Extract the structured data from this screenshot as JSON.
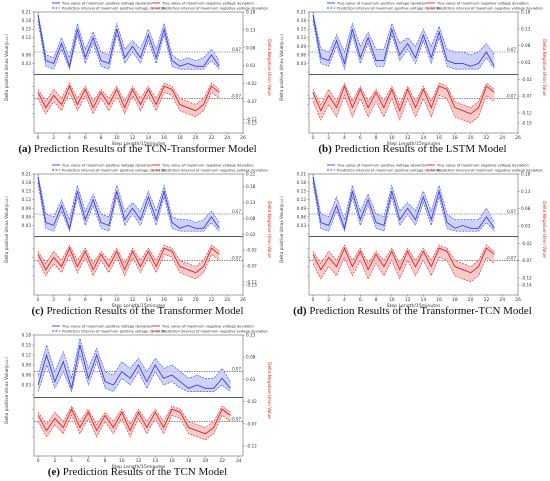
{
  "legend": {
    "pos_true": "True value of maximum positive voltage deviation",
    "neg_true": "True value of maximum negative voltage deviation",
    "pos_pi": "Prediction interval of maximum positive voltage deviation",
    "neg_pi": "Prediction interval of maximum negative voltage deviation"
  },
  "colors": {
    "positive": "#3a3ee0",
    "positive_fill": "#c8c9f5",
    "negative": "#e22020",
    "negative_fill": "#f5c2c2",
    "threshold": "#444444"
  },
  "chart_data": [
    {
      "id": "a",
      "type": "line",
      "caption_label": "(a)",
      "caption_text": "Prediction Results of the TCN-Transformer Model",
      "xlabel": "Step Length/15minutes",
      "ylabel_left": "Delta positive Umax Value(p.u.)",
      "ylabel_right": "Delta Negative Umin Value",
      "x_ticks": [
        0,
        2,
        4,
        6,
        8,
        10,
        12,
        14,
        16,
        18,
        20,
        22,
        24,
        26
      ],
      "xlim": [
        -0.5,
        26
      ],
      "y_left_ticks": [
        0.0,
        0.03,
        0.06,
        0.09,
        0.12,
        0.15,
        0.18,
        0.21
      ],
      "y_left_tick_labels": [
        "",
        "0.03",
        "0.06",
        "",
        "0.12",
        "0.15",
        "0.18",
        "0.21"
      ],
      "y_right_ticks": [
        -0.13,
        -0.12,
        -0.07,
        -0.02,
        0.03,
        0.08,
        0.13,
        0.18
      ],
      "y_right_tick_labels": [
        "-0.13",
        "-0.12",
        "-0.07",
        "-0.02",
        "0.03",
        "0.08",
        "0.13",
        "0.18"
      ],
      "pos_threshold": 0.07,
      "neg_threshold": -0.07,
      "pos_threshold_label": "0.07",
      "neg_threshold_label": "-0.07",
      "x": [
        0,
        1,
        2,
        3,
        4,
        5,
        6,
        7,
        8,
        9,
        10,
        11,
        12,
        13,
        14,
        15,
        16,
        17,
        18,
        19,
        20,
        21,
        22,
        23
      ],
      "pos_true": [
        0.2,
        0.04,
        0.03,
        0.1,
        0.02,
        0.15,
        0.05,
        0.12,
        0.04,
        0.03,
        0.15,
        0.05,
        0.09,
        0.05,
        0.13,
        0.05,
        0.15,
        0.04,
        0.02,
        0.03,
        0.02,
        0.02,
        0.06,
        0.02
      ],
      "pos_upper": [
        0.21,
        0.06,
        0.05,
        0.12,
        0.05,
        0.17,
        0.08,
        0.14,
        0.07,
        0.06,
        0.17,
        0.08,
        0.11,
        0.08,
        0.15,
        0.08,
        0.17,
        0.06,
        0.04,
        0.05,
        0.04,
        0.05,
        0.08,
        0.04
      ],
      "pos_lower": [
        0.18,
        0.02,
        0.01,
        0.08,
        0.01,
        0.13,
        0.03,
        0.1,
        0.02,
        0.01,
        0.13,
        0.03,
        0.07,
        0.03,
        0.11,
        0.03,
        0.13,
        0.02,
        0.01,
        0.01,
        0.01,
        0.01,
        0.04,
        0.01
      ],
      "neg_true": [
        -0.05,
        -0.1,
        -0.06,
        -0.09,
        -0.03,
        -0.09,
        -0.04,
        -0.1,
        -0.05,
        -0.09,
        -0.04,
        -0.1,
        -0.04,
        -0.09,
        -0.04,
        -0.09,
        -0.03,
        -0.04,
        -0.09,
        -0.1,
        -0.11,
        -0.09,
        -0.03,
        -0.05
      ],
      "neg_upper": [
        -0.04,
        -0.08,
        -0.04,
        -0.07,
        -0.02,
        -0.07,
        -0.03,
        -0.08,
        -0.04,
        -0.07,
        -0.03,
        -0.08,
        -0.03,
        -0.07,
        -0.03,
        -0.07,
        -0.02,
        -0.03,
        -0.07,
        -0.08,
        -0.09,
        -0.07,
        -0.02,
        -0.04
      ],
      "neg_lower": [
        -0.07,
        -0.12,
        -0.08,
        -0.11,
        -0.05,
        -0.11,
        -0.06,
        -0.12,
        -0.07,
        -0.11,
        -0.06,
        -0.12,
        -0.06,
        -0.11,
        -0.06,
        -0.11,
        -0.05,
        -0.06,
        -0.11,
        -0.12,
        -0.13,
        -0.11,
        -0.05,
        -0.07
      ]
    },
    {
      "id": "b",
      "type": "line",
      "caption_label": "(b)",
      "caption_text": "Prediction Results of the LSTM Model",
      "xlabel": "Step Length/15minutes",
      "ylabel_left": "Delta positive Umax Value(p.u.)",
      "ylabel_right": "Delta Negative Umin Value",
      "x_ticks": [
        0,
        2,
        4,
        6,
        8,
        10,
        12,
        14,
        16,
        18,
        20,
        22,
        24,
        26
      ],
      "xlim": [
        -0.5,
        26
      ],
      "y_left_ticks": [
        0.0,
        0.03,
        0.06,
        0.09,
        0.12,
        0.15,
        0.18,
        0.21
      ],
      "y_left_tick_labels": [
        "",
        "0.03",
        "0.06",
        "0.09",
        "0.12",
        "0.15",
        "0.18",
        "0.21"
      ],
      "y_right_ticks": [
        -0.15,
        -0.12,
        -0.07,
        -0.02,
        0.03,
        0.08,
        0.13,
        0.18
      ],
      "y_right_tick_labels": [
        "-0.15",
        "-0.12",
        "-0.07",
        "-0.02",
        "0.03",
        "0.08",
        "0.13",
        "0.18"
      ],
      "pos_threshold": 0.07,
      "neg_threshold": -0.07,
      "pos_threshold_label": "0.07",
      "neg_threshold_label": "-0.07",
      "x": [
        0,
        1,
        2,
        3,
        4,
        5,
        6,
        7,
        8,
        9,
        10,
        11,
        12,
        13,
        14,
        15,
        16,
        17,
        18,
        19,
        20,
        21,
        22,
        23
      ],
      "pos_true": [
        0.2,
        0.05,
        0.04,
        0.11,
        0.03,
        0.15,
        0.05,
        0.12,
        0.04,
        0.04,
        0.15,
        0.06,
        0.1,
        0.05,
        0.13,
        0.05,
        0.14,
        0.04,
        0.03,
        0.03,
        0.02,
        0.03,
        0.07,
        0.02
      ],
      "pos_upper": [
        0.21,
        0.08,
        0.07,
        0.13,
        0.07,
        0.17,
        0.09,
        0.14,
        0.08,
        0.08,
        0.17,
        0.1,
        0.12,
        0.09,
        0.15,
        0.09,
        0.16,
        0.08,
        0.07,
        0.07,
        0.06,
        0.07,
        0.1,
        0.06
      ],
      "pos_lower": [
        0.18,
        0.03,
        0.02,
        0.09,
        0.01,
        0.13,
        0.03,
        0.1,
        0.02,
        0.02,
        0.13,
        0.04,
        0.08,
        0.03,
        0.11,
        0.03,
        0.12,
        0.02,
        0.01,
        0.01,
        0.01,
        0.01,
        0.05,
        0.01
      ],
      "neg_true": [
        -0.05,
        -0.11,
        -0.06,
        -0.1,
        -0.03,
        -0.1,
        -0.04,
        -0.1,
        -0.05,
        -0.1,
        -0.04,
        -0.11,
        -0.04,
        -0.1,
        -0.04,
        -0.1,
        -0.03,
        -0.04,
        -0.1,
        -0.11,
        -0.12,
        -0.1,
        -0.03,
        -0.05
      ],
      "neg_upper": [
        -0.04,
        -0.09,
        -0.04,
        -0.08,
        -0.02,
        -0.08,
        -0.03,
        -0.08,
        -0.04,
        -0.08,
        -0.03,
        -0.09,
        -0.03,
        -0.08,
        -0.03,
        -0.08,
        -0.02,
        -0.03,
        -0.08,
        -0.09,
        -0.1,
        -0.08,
        -0.02,
        -0.04
      ],
      "neg_lower": [
        -0.08,
        -0.14,
        -0.09,
        -0.13,
        -0.06,
        -0.13,
        -0.07,
        -0.13,
        -0.08,
        -0.13,
        -0.07,
        -0.14,
        -0.07,
        -0.13,
        -0.07,
        -0.13,
        -0.06,
        -0.07,
        -0.13,
        -0.14,
        -0.15,
        -0.13,
        -0.06,
        -0.08
      ]
    },
    {
      "id": "c",
      "type": "line",
      "caption_label": "(c)",
      "caption_text": "Prediction Results of the Transformer Model",
      "xlabel": "Step Length/15minutes",
      "ylabel_left": "Delta positive Umax Value(p.u.)",
      "ylabel_right": "Delta Negative Umin Value",
      "x_ticks": [
        0,
        2,
        4,
        6,
        8,
        10,
        12,
        14,
        16,
        18,
        20,
        22,
        24,
        26
      ],
      "xlim": [
        -0.5,
        26
      ],
      "y_left_ticks": [
        0.0,
        0.03,
        0.06,
        0.09,
        0.12,
        0.15,
        0.18,
        0.21
      ],
      "y_left_tick_labels": [
        "",
        "0.03",
        "0.06",
        "0.09",
        "0.12",
        "0.15",
        "0.18",
        "0.21"
      ],
      "y_right_ticks": [
        -0.13,
        -0.12,
        -0.07,
        -0.02,
        0.03,
        0.08,
        0.13,
        0.18,
        0.22
      ],
      "y_right_tick_labels": [
        "-0.13",
        "-0.12",
        "-0.07",
        "-0.02",
        "0.03",
        "0.08",
        "0.13",
        "0.18",
        "0.22"
      ],
      "pos_threshold": 0.07,
      "neg_threshold": -0.07,
      "pos_threshold_label": "0.07",
      "neg_threshold_label": "-0.07",
      "x": [
        0,
        1,
        2,
        3,
        4,
        5,
        6,
        7,
        8,
        9,
        10,
        11,
        12,
        13,
        14,
        15,
        16,
        17,
        18,
        19,
        20,
        21,
        22,
        23
      ],
      "pos_true": [
        0.2,
        0.04,
        0.03,
        0.1,
        0.02,
        0.15,
        0.05,
        0.12,
        0.04,
        0.03,
        0.15,
        0.05,
        0.09,
        0.05,
        0.13,
        0.05,
        0.15,
        0.04,
        0.02,
        0.03,
        0.02,
        0.02,
        0.06,
        0.02
      ],
      "pos_upper": [
        0.21,
        0.07,
        0.06,
        0.12,
        0.05,
        0.17,
        0.08,
        0.14,
        0.07,
        0.06,
        0.17,
        0.08,
        0.11,
        0.08,
        0.15,
        0.08,
        0.17,
        0.06,
        0.05,
        0.05,
        0.04,
        0.05,
        0.08,
        0.04
      ],
      "pos_lower": [
        0.18,
        0.02,
        0.01,
        0.08,
        0.01,
        0.13,
        0.03,
        0.1,
        0.02,
        0.01,
        0.13,
        0.03,
        0.07,
        0.03,
        0.11,
        0.03,
        0.13,
        0.02,
        0.01,
        0.01,
        0.01,
        0.01,
        0.04,
        0.01
      ],
      "neg_true": [
        -0.05,
        -0.1,
        -0.06,
        -0.09,
        -0.03,
        -0.09,
        -0.04,
        -0.1,
        -0.05,
        -0.09,
        -0.04,
        -0.1,
        -0.04,
        -0.09,
        -0.04,
        -0.09,
        -0.03,
        -0.04,
        -0.09,
        -0.1,
        -0.11,
        -0.09,
        -0.03,
        -0.05
      ],
      "neg_upper": [
        -0.04,
        -0.08,
        -0.04,
        -0.07,
        -0.02,
        -0.07,
        -0.03,
        -0.08,
        -0.04,
        -0.07,
        -0.03,
        -0.08,
        -0.03,
        -0.07,
        -0.03,
        -0.07,
        -0.02,
        -0.03,
        -0.07,
        -0.08,
        -0.09,
        -0.07,
        -0.02,
        -0.04
      ],
      "neg_lower": [
        -0.07,
        -0.12,
        -0.08,
        -0.11,
        -0.05,
        -0.11,
        -0.06,
        -0.12,
        -0.07,
        -0.11,
        -0.06,
        -0.12,
        -0.06,
        -0.11,
        -0.06,
        -0.11,
        -0.05,
        -0.06,
        -0.11,
        -0.12,
        -0.13,
        -0.11,
        -0.05,
        -0.07
      ]
    },
    {
      "id": "d",
      "type": "line",
      "caption_label": "(d)",
      "caption_text": "Prediction Results of the Transformer-TCN Model",
      "xlabel": "Step Length/15minutes",
      "ylabel_left": "Delta positive Umax Value(p.u.)",
      "ylabel_right": "Delta Negative Umin Value",
      "x_ticks": [
        0,
        2,
        4,
        6,
        8,
        10,
        12,
        14,
        16,
        18,
        20,
        22,
        24,
        26
      ],
      "xlim": [
        -0.5,
        26
      ],
      "y_left_ticks": [
        0.0,
        0.03,
        0.06,
        0.09,
        0.12,
        0.15,
        0.18,
        0.21
      ],
      "y_left_tick_labels": [
        "",
        "0.03",
        "0.06",
        "0.09",
        "0.12",
        "0.15",
        "0.18",
        "0.21"
      ],
      "y_right_ticks": [
        -0.14,
        -0.12,
        -0.07,
        -0.02,
        0.03,
        0.08,
        0.13,
        0.18
      ],
      "y_right_tick_labels": [
        "-0.14",
        "-0.12",
        "-0.07",
        "-0.02",
        "0.03",
        "0.08",
        "0.13",
        "0.18"
      ],
      "pos_threshold": 0.07,
      "neg_threshold": -0.07,
      "pos_threshold_label": "0.07",
      "neg_threshold_label": "-0.07",
      "x": [
        0,
        1,
        2,
        3,
        4,
        5,
        6,
        7,
        8,
        9,
        10,
        11,
        12,
        13,
        14,
        15,
        16,
        17,
        18,
        19,
        20,
        21,
        22,
        23
      ],
      "pos_true": [
        0.2,
        0.04,
        0.03,
        0.1,
        0.02,
        0.15,
        0.05,
        0.12,
        0.04,
        0.03,
        0.15,
        0.05,
        0.09,
        0.05,
        0.13,
        0.05,
        0.15,
        0.04,
        0.02,
        0.03,
        0.02,
        0.02,
        0.06,
        0.02
      ],
      "pos_upper": [
        0.21,
        0.07,
        0.06,
        0.13,
        0.05,
        0.17,
        0.08,
        0.14,
        0.07,
        0.06,
        0.17,
        0.08,
        0.11,
        0.08,
        0.15,
        0.08,
        0.17,
        0.07,
        0.05,
        0.05,
        0.05,
        0.05,
        0.09,
        0.04
      ],
      "pos_lower": [
        0.18,
        0.02,
        0.01,
        0.08,
        0.01,
        0.13,
        0.03,
        0.1,
        0.02,
        0.01,
        0.13,
        0.03,
        0.07,
        0.03,
        0.11,
        0.03,
        0.13,
        0.02,
        0.01,
        0.01,
        0.01,
        0.01,
        0.04,
        0.01
      ],
      "neg_true": [
        -0.05,
        -0.1,
        -0.06,
        -0.09,
        -0.03,
        -0.09,
        -0.04,
        -0.1,
        -0.05,
        -0.09,
        -0.04,
        -0.1,
        -0.04,
        -0.09,
        -0.04,
        -0.09,
        -0.03,
        -0.04,
        -0.09,
        -0.1,
        -0.11,
        -0.09,
        -0.03,
        -0.05
      ],
      "neg_upper": [
        -0.04,
        -0.08,
        -0.04,
        -0.07,
        -0.02,
        -0.07,
        -0.03,
        -0.08,
        -0.04,
        -0.07,
        -0.03,
        -0.08,
        -0.03,
        -0.07,
        -0.03,
        -0.07,
        -0.02,
        -0.03,
        -0.07,
        -0.08,
        -0.09,
        -0.07,
        -0.02,
        -0.04
      ],
      "neg_lower": [
        -0.08,
        -0.13,
        -0.09,
        -0.12,
        -0.06,
        -0.12,
        -0.07,
        -0.13,
        -0.08,
        -0.12,
        -0.07,
        -0.13,
        -0.07,
        -0.12,
        -0.07,
        -0.12,
        -0.06,
        -0.07,
        -0.12,
        -0.13,
        -0.14,
        -0.12,
        -0.06,
        -0.08
      ]
    },
    {
      "id": "e",
      "type": "line",
      "caption_label": "(e)",
      "caption_text": "Prediction Results of the TCN Model",
      "xlabel": "Step Length/15minutes",
      "ylabel_left": "Delta positive Umax Value(p.u.)",
      "ylabel_right": "Delta Negative Umin Value",
      "x_ticks": [
        0,
        2,
        4,
        6,
        8,
        10,
        12,
        14,
        16,
        18,
        20,
        22,
        24
      ],
      "xlim": [
        -0.5,
        24.5
      ],
      "y_left_ticks": [
        0.0,
        0.03,
        0.06,
        0.09,
        0.12,
        0.15,
        0.18
      ],
      "y_left_tick_labels": [
        "",
        "0.03",
        "0.06",
        "0.09",
        "0.12",
        "0.15",
        "0.18"
      ],
      "y_right_ticks": [
        -0.12,
        -0.07,
        -0.02,
        0.03,
        0.08,
        0.13
      ],
      "y_right_tick_labels": [
        "-0.12",
        "-0.07",
        "-0.02",
        "0.03",
        "0.08",
        "0.13"
      ],
      "pos_threshold": 0.07,
      "neg_threshold": -0.07,
      "pos_threshold_label": "0.07",
      "neg_threshold_label": "-0.07",
      "x": [
        0,
        1,
        2,
        3,
        4,
        5,
        6,
        7,
        8,
        9,
        10,
        11,
        12,
        13,
        14,
        15,
        16,
        17,
        18,
        19,
        20,
        21,
        22,
        23
      ],
      "pos_true": [
        0.03,
        0.12,
        0.04,
        0.1,
        0.02,
        0.15,
        0.05,
        0.12,
        0.04,
        0.03,
        0.07,
        0.05,
        0.09,
        0.04,
        0.09,
        0.05,
        0.06,
        0.04,
        0.02,
        0.03,
        0.02,
        0.02,
        0.05,
        0.02
      ],
      "pos_upper": [
        0.06,
        0.15,
        0.07,
        0.13,
        0.05,
        0.17,
        0.08,
        0.14,
        0.07,
        0.06,
        0.1,
        0.08,
        0.11,
        0.07,
        0.11,
        0.08,
        0.09,
        0.07,
        0.05,
        0.06,
        0.05,
        0.05,
        0.08,
        0.04
      ],
      "pos_lower": [
        0.01,
        0.09,
        0.02,
        0.07,
        0.01,
        0.12,
        0.03,
        0.1,
        0.02,
        0.01,
        0.05,
        0.03,
        0.07,
        0.02,
        0.07,
        0.03,
        0.04,
        0.02,
        0.01,
        0.01,
        0.01,
        0.01,
        0.03,
        0.01
      ],
      "neg_true": [
        -0.05,
        -0.1,
        -0.06,
        -0.09,
        -0.03,
        -0.09,
        -0.04,
        -0.1,
        -0.05,
        -0.09,
        -0.04,
        -0.1,
        -0.04,
        -0.09,
        -0.04,
        -0.09,
        -0.03,
        -0.04,
        -0.09,
        -0.1,
        -0.11,
        -0.09,
        -0.03,
        -0.05
      ],
      "neg_upper": [
        -0.04,
        -0.08,
        -0.04,
        -0.07,
        -0.02,
        -0.07,
        -0.03,
        -0.08,
        -0.04,
        -0.07,
        -0.03,
        -0.08,
        -0.03,
        -0.07,
        -0.03,
        -0.07,
        -0.02,
        -0.03,
        -0.07,
        -0.08,
        -0.09,
        -0.07,
        -0.02,
        -0.04
      ],
      "neg_lower": [
        -0.07,
        -0.12,
        -0.08,
        -0.11,
        -0.05,
        -0.11,
        -0.06,
        -0.12,
        -0.07,
        -0.11,
        -0.06,
        -0.12,
        -0.06,
        -0.11,
        -0.06,
        -0.11,
        -0.05,
        -0.06,
        -0.11,
        -0.12,
        -0.13,
        -0.11,
        -0.05,
        -0.07
      ]
    }
  ]
}
